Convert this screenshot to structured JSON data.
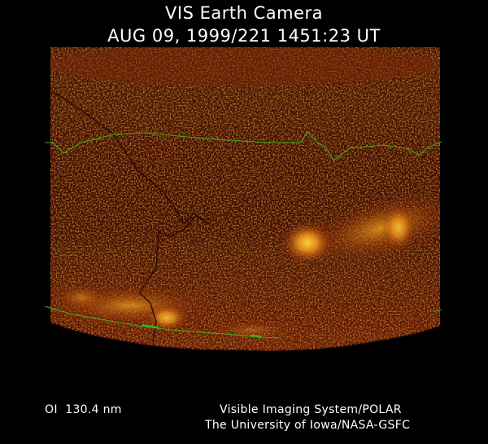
{
  "header": {
    "title": "VIS Earth Camera",
    "timestamp": "AUG 09, 1999/221 1451:23 UT"
  },
  "footer": {
    "filter": "OI  130.4 nm",
    "instrument": "Visible Imaging System/POLAR",
    "institution": "The University of Iowa/NASA-GSFC"
  },
  "colors": {
    "background": "#000000",
    "image_dark": "#3a0c00",
    "image_mid": "#6b1d04",
    "aurora_glow": "#ffb92a",
    "coastline": "#2a0a02",
    "grid_line": "#3fae1a"
  }
}
